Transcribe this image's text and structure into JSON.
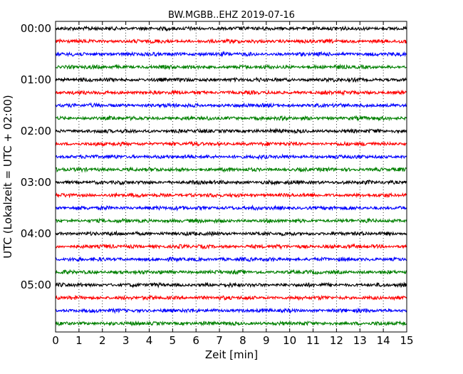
{
  "chart_data": {
    "type": "line",
    "title": "BW.MGBB..EHZ 2019-07-16",
    "xlabel": "Zeit  [min]",
    "ylabel": "UTC (Lokalzeit = UTC + 02:00)",
    "xlim": [
      0,
      15
    ],
    "x_ticks": [
      "0",
      "1",
      "2",
      "3",
      "4",
      "5",
      "6",
      "7",
      "8",
      "9",
      "10",
      "11",
      "12",
      "13",
      "14",
      "15"
    ],
    "y_ticks": [
      "00:00",
      "01:00",
      "02:00",
      "03:00",
      "04:00",
      "05:00"
    ],
    "trace_interval_minutes": 15,
    "trace_count": 24,
    "trace_colors": [
      "#000000",
      "#ff0000",
      "#0000ff",
      "#008000"
    ],
    "grid": "vertical-dotted",
    "legend": "none"
  }
}
